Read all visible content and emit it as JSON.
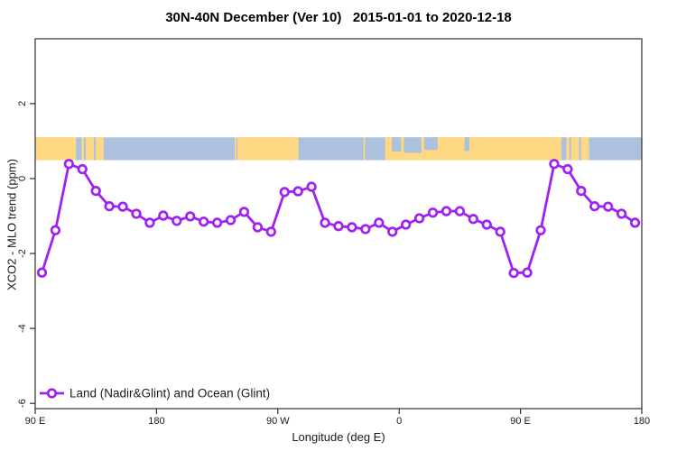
{
  "chart_data": {
    "type": "line",
    "title": "30N-40N December (Ver 10)   2015-01-01 to 2020-12-18",
    "xlabel": "Longitude (deg E)",
    "ylabel": "XCO2 - MLO trend (ppm)",
    "xlim": [
      90,
      540
    ],
    "ylim": [
      -6.14,
      3.73
    ],
    "grid": false,
    "legend_position": "bottom-left",
    "x_ticks": [
      {
        "value": 90,
        "label": "90 E"
      },
      {
        "value": 180,
        "label": "180"
      },
      {
        "value": 270,
        "label": "90 W"
      },
      {
        "value": 360,
        "label": "0"
      },
      {
        "value": 450,
        "label": "90 E"
      },
      {
        "value": 540,
        "label": "180"
      }
    ],
    "y_ticks": [
      {
        "value": 2,
        "label": "2"
      },
      {
        "value": 0,
        "label": "0"
      },
      {
        "value": -2,
        "label": "-2"
      },
      {
        "value": -4,
        "label": "-4"
      },
      {
        "value": -6,
        "label": "-6"
      }
    ],
    "series": [
      {
        "name": "Land (Nadir&Glint) and Ocean (Glint)",
        "x": [
          95,
          105,
          115,
          125,
          135,
          145,
          155,
          165,
          175,
          185,
          195,
          205,
          215,
          225,
          235,
          245,
          255,
          265,
          275,
          285,
          295,
          305,
          315,
          325,
          335,
          345,
          355,
          365,
          375,
          385,
          395,
          405,
          415,
          425,
          435,
          445,
          455,
          465,
          475,
          485,
          495,
          505,
          515,
          525,
          535
        ],
        "values": [
          -2.51,
          -1.38,
          0.39,
          0.25,
          -0.33,
          -0.74,
          -0.75,
          -0.94,
          -1.18,
          -0.99,
          -1.13,
          -1.01,
          -1.15,
          -1.18,
          -1.11,
          -0.89,
          -1.3,
          -1.42,
          -0.36,
          -0.34,
          -0.22,
          -1.18,
          -1.27,
          -1.3,
          -1.35,
          -1.18,
          -1.42,
          -1.23,
          -1.06,
          -0.91,
          -0.87,
          -0.87,
          -1.08,
          -1.23,
          -1.42,
          -2.52,
          -2.51,
          -1.38,
          0.39,
          0.25,
          -0.33,
          -0.74,
          -0.75,
          -0.94,
          -1.18
        ]
      }
    ],
    "map_band": {
      "description": "30N-40N latitude strip map: yellow=land, blue=ocean",
      "y_top_value": 1.1,
      "y_bottom_value": 0.49,
      "sea_range": [
        90,
        540
      ],
      "land_segments": [
        [
          90,
          120.3
        ],
        [
          124.5,
          126.2
        ],
        [
          127.5,
          133.5
        ],
        [
          135,
          140.8
        ],
        [
          238,
          239.2
        ],
        [
          240,
          285.3
        ],
        [
          333.5,
          334.7
        ],
        [
          349.5,
          480.3
        ],
        [
          484,
          486.2
        ],
        [
          487.5,
          493.5
        ],
        [
          495,
          500.8
        ]
      ],
      "sea_overlays": [
        {
          "range": [
            354.5,
            361.5
          ],
          "depth": 0.62
        },
        {
          "range": [
            363.5,
            376.5
          ],
          "depth": 0.68
        },
        {
          "range": [
            378.5,
            388.5
          ],
          "depth": 0.55
        },
        {
          "range": [
            408.5,
            412.0
          ],
          "depth": 0.6
        }
      ]
    },
    "colors": {
      "line": "#A021F0",
      "marker_fill": "#FFFFFF",
      "land": "#FFD884",
      "sea": "#ABC1DE",
      "axis": "#2F2F2F",
      "text": "#1A1A1A"
    }
  }
}
